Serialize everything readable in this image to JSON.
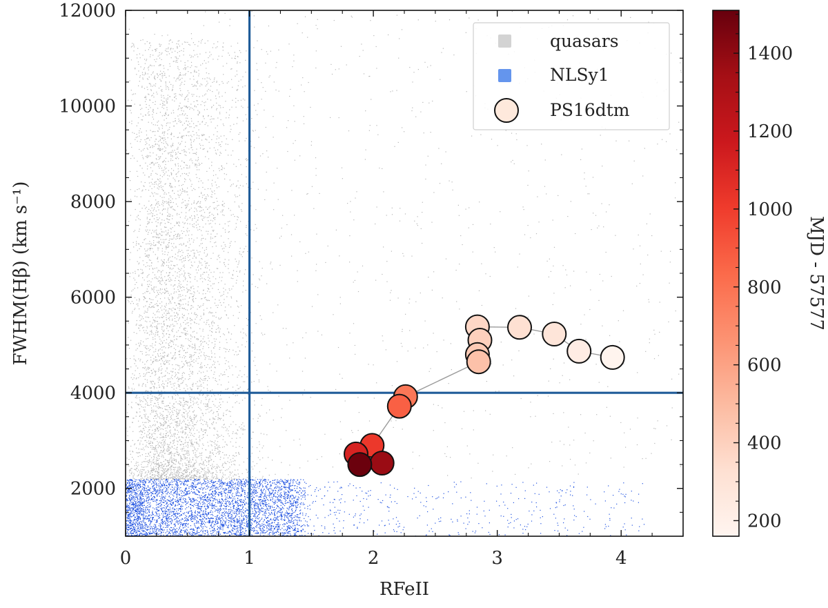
{
  "chart_data": {
    "type": "scatter",
    "xlabel": "RFeII",
    "ylabel": "FWHM(Hβ) (km s⁻¹)",
    "xlim": [
      0,
      4.5
    ],
    "ylim": [
      1000,
      12000
    ],
    "x_ticks": [
      0,
      1,
      2,
      3,
      4
    ],
    "x_tick_labels": [
      "0",
      "1",
      "2",
      "3",
      "4"
    ],
    "y_ticks": [
      2000,
      4000,
      6000,
      8000,
      10000,
      12000
    ],
    "y_tick_labels": [
      "2000",
      "4000",
      "6000",
      "8000",
      "10000",
      "12000"
    ],
    "reference_lines": {
      "vertical_x": 1,
      "horizontal_y": 4000,
      "color": "#1f5b99"
    },
    "legend": {
      "position": "top-right",
      "entries": [
        {
          "label": "quasars",
          "color": "#d3d3d3",
          "marker": "square"
        },
        {
          "label": "NLSy1",
          "color": "#6495ed",
          "marker": "square"
        },
        {
          "label": "PS16dtm",
          "color": "#fee9dc",
          "marker": "circle"
        }
      ]
    },
    "background_populations": [
      {
        "name": "quasars",
        "color": "#b5b5b5",
        "x_range": [
          0,
          4.5
        ],
        "y_range": [
          2200,
          12000
        ]
      },
      {
        "name": "NLSy1",
        "color": "#1c4fe0",
        "x_range": [
          0,
          4.3
        ],
        "y_range": [
          1000,
          2200
        ]
      }
    ],
    "series": [
      {
        "name": "PS16dtm",
        "connect_line_color": "#9a9a9a",
        "points": [
          {
            "x": 3.93,
            "y": 4740,
            "c": 170
          },
          {
            "x": 3.66,
            "y": 4870,
            "c": 230
          },
          {
            "x": 3.46,
            "y": 5230,
            "c": 290
          },
          {
            "x": 3.18,
            "y": 5370,
            "c": 330
          },
          {
            "x": 2.84,
            "y": 5380,
            "c": 370
          },
          {
            "x": 2.86,
            "y": 5100,
            "c": 400
          },
          {
            "x": 2.84,
            "y": 4800,
            "c": 430
          },
          {
            "x": 2.85,
            "y": 4650,
            "c": 470
          },
          {
            "x": 2.26,
            "y": 3920,
            "c": 780
          },
          {
            "x": 2.21,
            "y": 3720,
            "c": 870
          },
          {
            "x": 1.99,
            "y": 2900,
            "c": 1020
          },
          {
            "x": 1.86,
            "y": 2720,
            "c": 1120
          },
          {
            "x": 2.07,
            "y": 2530,
            "c": 1370
          },
          {
            "x": 1.89,
            "y": 2500,
            "c": 1500
          }
        ]
      }
    ],
    "colorbar": {
      "label": "MJD - 57577",
      "range": [
        160,
        1510
      ],
      "ticks": [
        200,
        400,
        600,
        800,
        1000,
        1200,
        1400
      ],
      "tick_labels": [
        "200",
        "400",
        "600",
        "800",
        "1000",
        "1200",
        "1400"
      ],
      "colormap": [
        "#fff5f0",
        "#fee0d2",
        "#fcbba1",
        "#fc9272",
        "#fb6a4a",
        "#ef3b2c",
        "#cb181d",
        "#a50f15",
        "#67000d"
      ]
    }
  }
}
